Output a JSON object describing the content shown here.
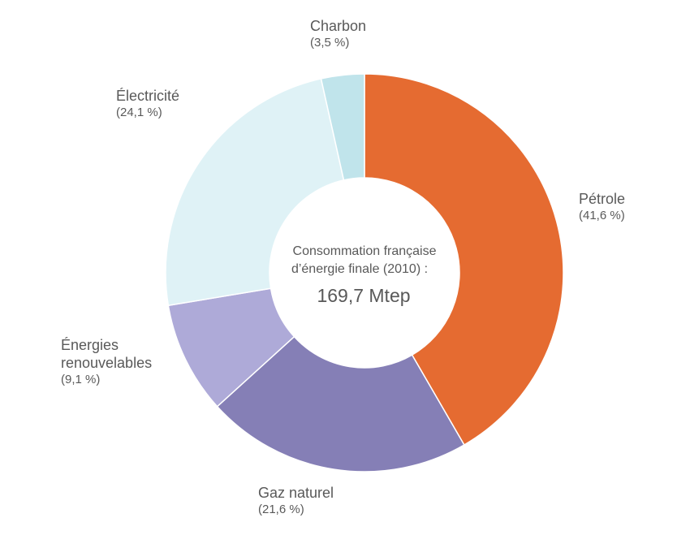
{
  "chart_data": {
    "type": "pie",
    "donut": true,
    "center_text": {
      "line1": "Consommation française",
      "line2": "d’énergie finale (2010) :",
      "value": "169,7 Mtep"
    },
    "start_angle_deg": 0,
    "direction": "clockwise",
    "legend": "none",
    "slices": [
      {
        "key": "petrole",
        "label_lines": [
          "Pétrole"
        ],
        "value": 41.6,
        "pct_label": "(41,6 %)",
        "color": "#e56b31"
      },
      {
        "key": "gaz",
        "label_lines": [
          "Gaz naturel"
        ],
        "value": 21.6,
        "pct_label": "(21,6 %)",
        "color": "#857fb6"
      },
      {
        "key": "enr",
        "label_lines": [
          "Énergies",
          "renouvelables"
        ],
        "value": 9.1,
        "pct_label": "(9,1 %)",
        "color": "#aeaad8"
      },
      {
        "key": "elec",
        "label_lines": [
          "Électricité"
        ],
        "value": 24.1,
        "pct_label": "(24,1 %)",
        "color": "#dff2f6"
      },
      {
        "key": "charbon",
        "label_lines": [
          "Charbon"
        ],
        "value": 3.5,
        "pct_label": "(3,5 %)",
        "color": "#c0e4eb"
      }
    ]
  }
}
